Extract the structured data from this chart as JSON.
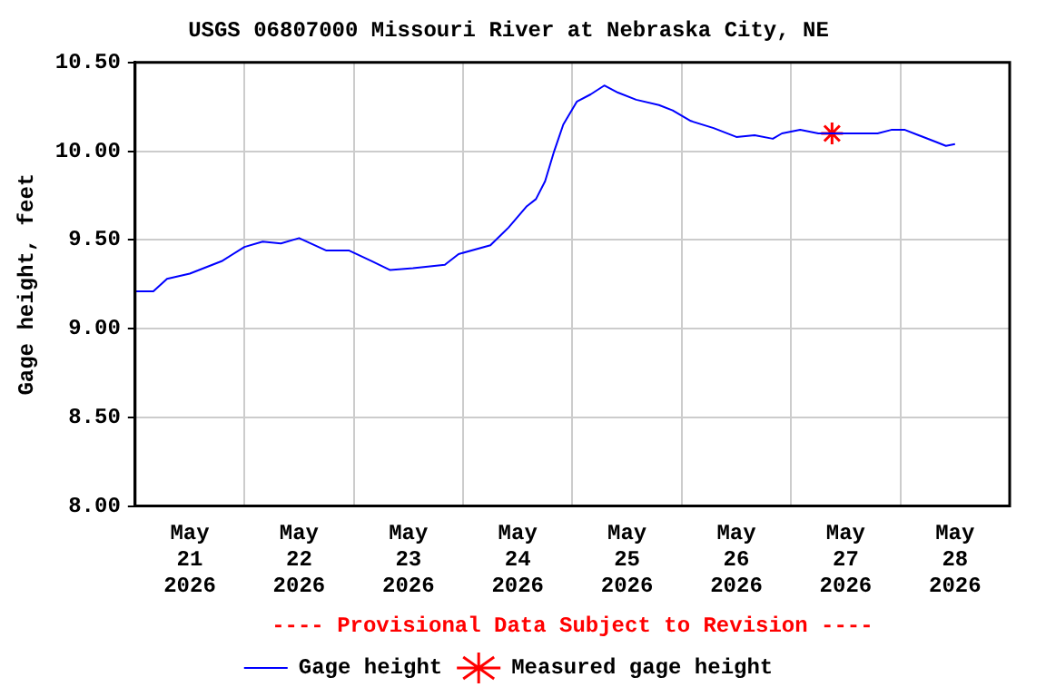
{
  "chart_data": {
    "type": "line",
    "title": "USGS 06807000 Missouri River at Nebraska City, NE",
    "ylabel": "Gage height, feet",
    "annotations": [
      "---- Provisional Data Subject to Revision ----"
    ],
    "xlim": [
      "2026-05-21T00:00",
      "2026-05-29T00:00"
    ],
    "xticks": [
      {
        "value": "2026-05-21T12:00",
        "label": "May 21 2026"
      },
      {
        "value": "2026-05-22T00:00",
        "label": null
      },
      {
        "value": "2026-05-22T12:00",
        "label": "May 22 2026"
      },
      {
        "value": "2026-05-23T00:00",
        "label": null
      },
      {
        "value": "2026-05-23T12:00",
        "label": "May 23 2026"
      },
      {
        "value": "2026-05-24T00:00",
        "label": null
      },
      {
        "value": "2026-05-24T12:00",
        "label": "May 24 2026"
      },
      {
        "value": "2026-05-25T00:00",
        "label": null
      },
      {
        "value": "2026-05-25T12:00",
        "label": "May 25 2026"
      },
      {
        "value": "2026-05-26T00:00",
        "label": null
      },
      {
        "value": "2026-05-26T12:00",
        "label": "May 26 2026"
      },
      {
        "value": "2026-05-27T00:00",
        "label": null
      },
      {
        "value": "2026-05-27T12:00",
        "label": "May 27 2026"
      },
      {
        "value": "2026-05-28T00:00",
        "label": null
      },
      {
        "value": "2026-05-28T12:00",
        "label": "May 28 2026"
      }
    ],
    "ylim": [
      8,
      10.5
    ],
    "yticks": [
      {
        "value": 8,
        "label": "8.00"
      },
      {
        "value": 8.5,
        "label": "8.50"
      },
      {
        "value": 9,
        "label": "9.00"
      },
      {
        "value": 9.5,
        "label": "9.50"
      },
      {
        "value": 10,
        "label": "10.00"
      },
      {
        "value": 10.5,
        "label": "10.50"
      }
    ],
    "grid": true,
    "legend": "bottom",
    "series": [
      {
        "name": "Gage height",
        "color": "#0000ff",
        "type": "line",
        "marker": "none",
        "x": [
          "2026-05-21T00:00",
          "2026-05-21T04:00",
          "2026-05-21T07:00",
          "2026-05-21T12:00",
          "2026-05-21T19:00",
          "2026-05-22T00:00",
          "2026-05-22T04:00",
          "2026-05-22T08:00",
          "2026-05-22T12:00",
          "2026-05-22T18:00",
          "2026-05-22T23:00",
          "2026-05-23T04:00",
          "2026-05-23T08:00",
          "2026-05-23T13:00",
          "2026-05-23T20:00",
          "2026-05-23T23:00",
          "2026-05-24T06:00",
          "2026-05-24T10:00",
          "2026-05-24T14:00",
          "2026-05-24T16:00",
          "2026-05-24T18:00",
          "2026-05-24T20:00",
          "2026-05-24T22:00",
          "2026-05-25T01:00",
          "2026-05-25T04:00",
          "2026-05-25T07:00",
          "2026-05-25T10:00",
          "2026-05-25T14:00",
          "2026-05-25T19:00",
          "2026-05-25T22:00",
          "2026-05-26T02:00",
          "2026-05-26T07:00",
          "2026-05-26T12:00",
          "2026-05-26T16:00",
          "2026-05-26T20:00",
          "2026-05-26T22:00",
          "2026-05-27T02:00",
          "2026-05-27T06:00",
          "2026-05-27T09:00",
          "2026-05-27T13:00",
          "2026-05-27T19:00",
          "2026-05-27T22:00",
          "2026-05-28T01:00",
          "2026-05-28T04:00",
          "2026-05-28T08:00",
          "2026-05-28T10:00",
          "2026-05-28T12:00"
        ],
        "values": [
          9.21,
          9.21,
          9.28,
          9.31,
          9.38,
          9.46,
          9.49,
          9.48,
          9.51,
          9.44,
          9.44,
          9.38,
          9.33,
          9.34,
          9.36,
          9.42,
          9.47,
          9.57,
          9.69,
          9.73,
          9.83,
          10.0,
          10.15,
          10.28,
          10.32,
          10.37,
          10.33,
          10.29,
          10.26,
          10.23,
          10.17,
          10.13,
          10.08,
          10.09,
          10.07,
          10.1,
          10.12,
          10.1,
          10.1,
          10.1,
          10.1,
          10.12,
          10.12,
          10.09,
          10.05,
          10.03,
          10.04
        ]
      },
      {
        "name": "Measured gage height",
        "color": "#ff0000",
        "type": "scatter",
        "marker": "cross",
        "x": [
          "2026-05-27T09:00"
        ],
        "values": [
          10.1
        ]
      }
    ]
  }
}
